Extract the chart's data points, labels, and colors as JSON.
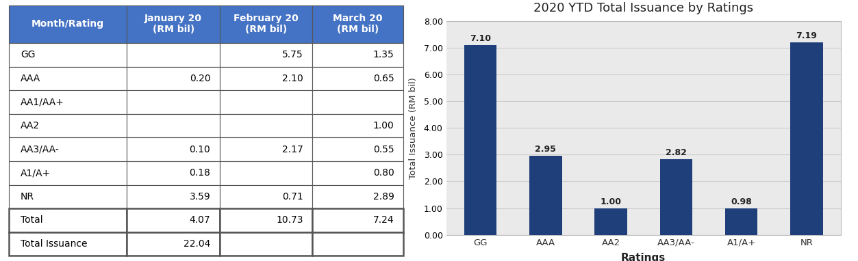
{
  "table": {
    "col_headers": [
      "Month/Rating",
      "January 20\n(RM bil)",
      "February 20\n(RM bil)",
      "March 20\n(RM bil)"
    ],
    "header_bg": "#4472C4",
    "header_fg": "#FFFFFF",
    "rows": [
      [
        "GG",
        "",
        "5.75",
        "1.35"
      ],
      [
        "AAA",
        "0.20",
        "2.10",
        "0.65"
      ],
      [
        "AA1/AA+",
        "",
        "",
        ""
      ],
      [
        "AA2",
        "",
        "",
        "1.00"
      ],
      [
        "AA3/AA-",
        "0.10",
        "2.17",
        "0.55"
      ],
      [
        "A1/A+",
        "0.18",
        "",
        "0.80"
      ],
      [
        "NR",
        "3.59",
        "0.71",
        "2.89"
      ]
    ],
    "total_row": [
      "Total",
      "4.07",
      "10.73",
      "7.24"
    ],
    "issuance_row": [
      "Total Issuance",
      "22.04",
      "",
      ""
    ]
  },
  "chart": {
    "title": "2020 YTD Total Issuance by Ratings",
    "categories": [
      "GG",
      "AAA",
      "AA2",
      "AA3/AA-",
      "A1/A+",
      "NR"
    ],
    "values": [
      7.1,
      2.95,
      1.0,
      2.82,
      0.98,
      7.19
    ],
    "bar_color": "#1F3F7A",
    "ylabel": "Total Issuance (RM bil)",
    "xlabel": "Ratings",
    "ylim": [
      0,
      8.0
    ],
    "yticks": [
      0.0,
      1.0,
      2.0,
      3.0,
      4.0,
      5.0,
      6.0,
      7.0,
      8.0
    ],
    "grid_color": "#CCCCCC",
    "bg_color": "#EAEAEA"
  }
}
